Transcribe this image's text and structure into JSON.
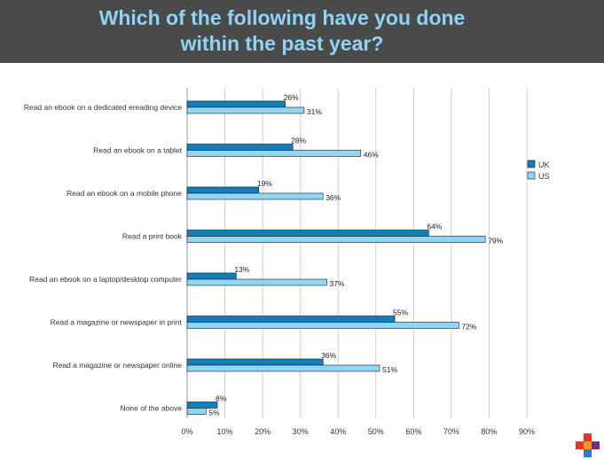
{
  "header": {
    "title_line1": "Which of the following have you done",
    "title_line2": "within the past year?"
  },
  "chart_data": {
    "type": "bar",
    "orientation": "horizontal",
    "categories": [
      "Read an ebook on a dedicated ereading device",
      "Read an ebook on a tablet",
      "Read an ebook on a mobile phone",
      "Read a print book",
      "Read an ebook on a laptop/desktop computer",
      "Read a magazine or newspaper in print",
      "Read a magazine or newspaper online",
      "None of the above"
    ],
    "series": [
      {
        "name": "UK",
        "values": [
          26,
          28,
          19,
          64,
          13,
          55,
          36,
          8
        ],
        "color": "#0f7fc0"
      },
      {
        "name": "US",
        "values": [
          31,
          46,
          36,
          79,
          37,
          72,
          51,
          5
        ],
        "color": "#8fd6f4"
      }
    ],
    "value_unit": "%",
    "xlim": [
      0,
      90
    ],
    "xticks": [
      "0%",
      "10%",
      "20%",
      "30%",
      "40%",
      "50%",
      "60%",
      "70%",
      "80%",
      "90%"
    ],
    "grid": true,
    "legend_position": "right"
  },
  "colors": {
    "header_bg": "#4a4a4a",
    "title_text": "#8fd3f5",
    "uk_bar": "#0f7fc0",
    "us_bar": "#8fd6f4",
    "gridline": "#d0d0d0",
    "bar_outline": "#1a1a1a"
  }
}
